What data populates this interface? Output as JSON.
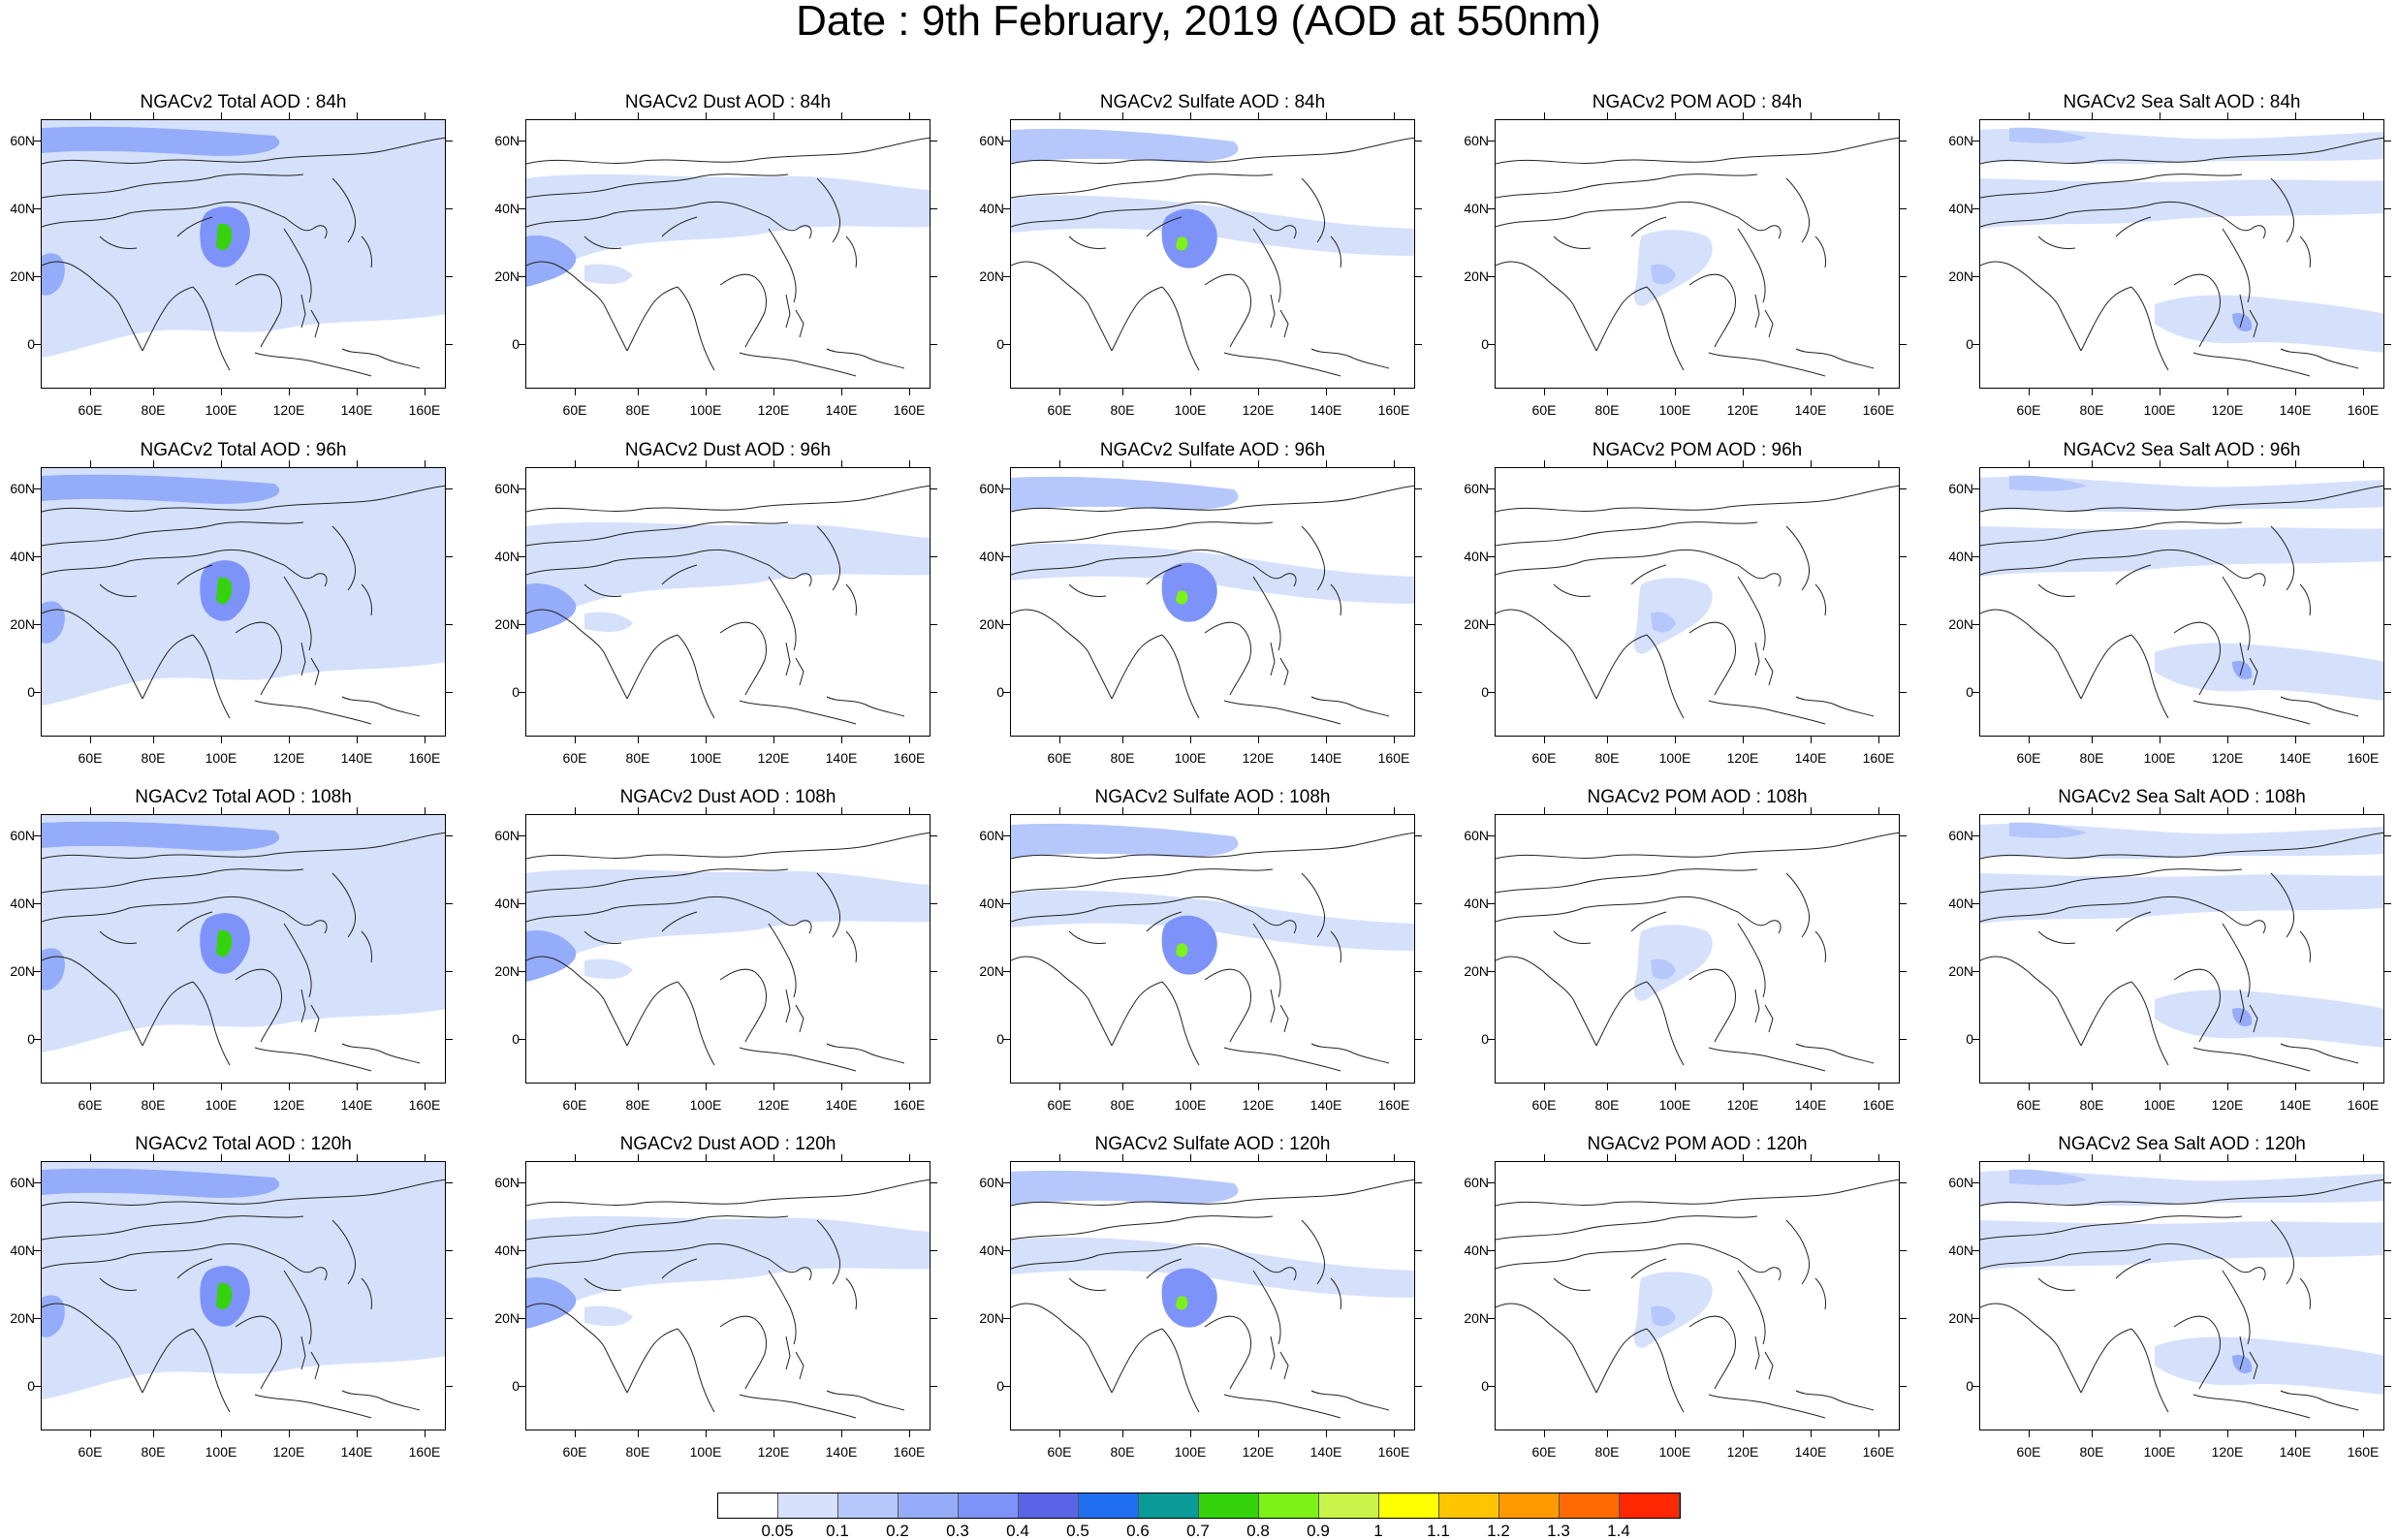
{
  "title": "Date : 9th February, 2019 (AOD at 550nm)",
  "lat_labels": [
    "60N",
    "40N",
    "20N",
    "0"
  ],
  "lon_labels": [
    "60E",
    "80E",
    "100E",
    "120E",
    "140E",
    "160E"
  ],
  "panels": [
    [
      "NGACv2 Total AOD : 84h",
      "NGACv2 Dust AOD : 84h",
      "NGACv2 Sulfate AOD : 84h",
      "NGACv2 POM AOD : 84h",
      "NGACv2 Sea Salt AOD : 84h"
    ],
    [
      "NGACv2 Total AOD : 96h",
      "NGACv2 Dust AOD : 96h",
      "NGACv2 Sulfate AOD : 96h",
      "NGACv2 POM AOD : 96h",
      "NGACv2 Sea Salt AOD : 96h"
    ],
    [
      "NGACv2 Total AOD : 108h",
      "NGACv2 Dust AOD : 108h",
      "NGACv2 Sulfate AOD : 108h",
      "NGACv2 POM AOD : 108h",
      "NGACv2 Sea Salt AOD : 108h"
    ],
    [
      "NGACv2 Total AOD : 120h",
      "NGACv2 Dust AOD : 120h",
      "NGACv2 Sulfate AOD : 120h",
      "NGACv2 POM AOD : 120h",
      "NGACv2 Sea Salt  AOD : 120h"
    ]
  ],
  "colorbar": {
    "labels": [
      "0.05",
      "0.1",
      "0.2",
      "0.3",
      "0.4",
      "0.5",
      "0.6",
      "0.7",
      "0.8",
      "0.9",
      "1",
      "1.1",
      "1.2",
      "1.3",
      "1.4"
    ],
    "colors": [
      "#ffffff",
      "#d5e0fb",
      "#b6c7fb",
      "#94acf9",
      "#7e93f9",
      "#5a64e6",
      "#1f6ef0",
      "#0a9a98",
      "#35d30c",
      "#7cf216",
      "#c9f44a",
      "#ffff00",
      "#ffc500",
      "#ff9900",
      "#ff6a00",
      "#ff2800"
    ]
  }
}
